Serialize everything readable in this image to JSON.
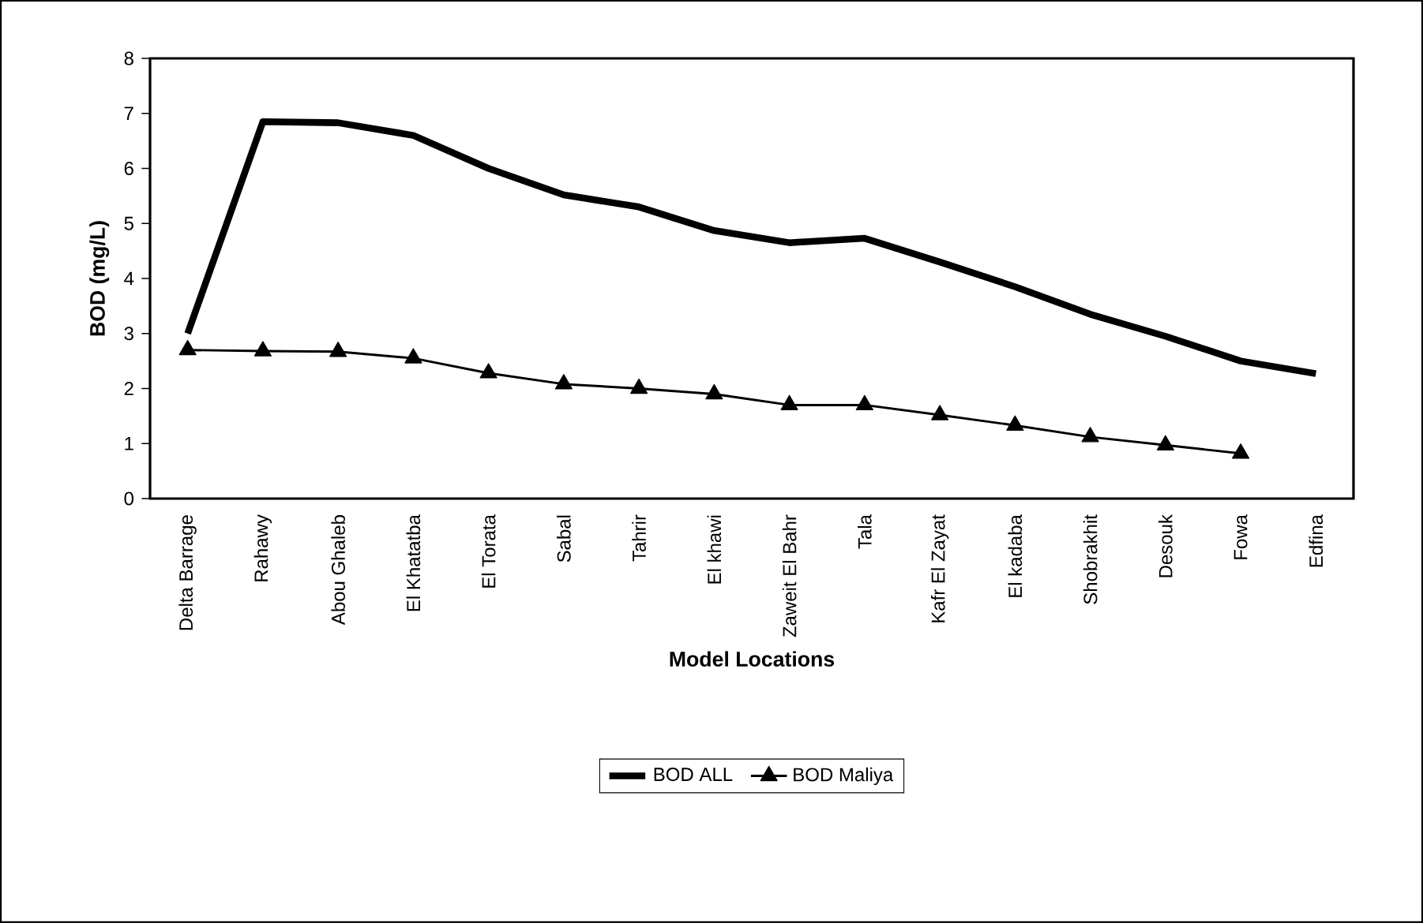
{
  "chart_data": {
    "type": "line",
    "xlabel": "Model Locations",
    "ylabel": "BOD (mg/L)",
    "categories": [
      "Delta Barrage",
      "Rahawy",
      "Abou Ghaleb",
      "El Khatatba",
      "El Torata",
      "Sabal",
      "Tahrir",
      "El khawi",
      "Zaweit El Bahr",
      "Tala",
      "Kafr El Zayat",
      "El kadaba",
      "Shobrakhit",
      "Desouk",
      "Fowa",
      "Edfina"
    ],
    "series": [
      {
        "name": "BOD ALL",
        "color": "#000000",
        "marker": "none",
        "values": [
          3.0,
          6.85,
          6.83,
          6.6,
          6.0,
          5.52,
          5.3,
          4.87,
          4.65,
          4.73,
          4.3,
          3.85,
          3.35,
          2.95,
          2.5,
          2.27
        ]
      },
      {
        "name": "BOD Maliya",
        "color": "#000000",
        "marker": "triangle",
        "values": [
          2.7,
          2.68,
          2.67,
          2.55,
          2.28,
          2.08,
          2.0,
          1.9,
          1.7,
          1.7,
          1.52,
          1.33,
          1.12,
          0.97,
          0.82,
          null
        ]
      }
    ],
    "ylim": [
      0,
      8
    ],
    "yticks": [
      0,
      1,
      2,
      3,
      4,
      5,
      6,
      7,
      8
    ],
    "grid": false,
    "legend": "bottom",
    "line_style": "solid"
  }
}
